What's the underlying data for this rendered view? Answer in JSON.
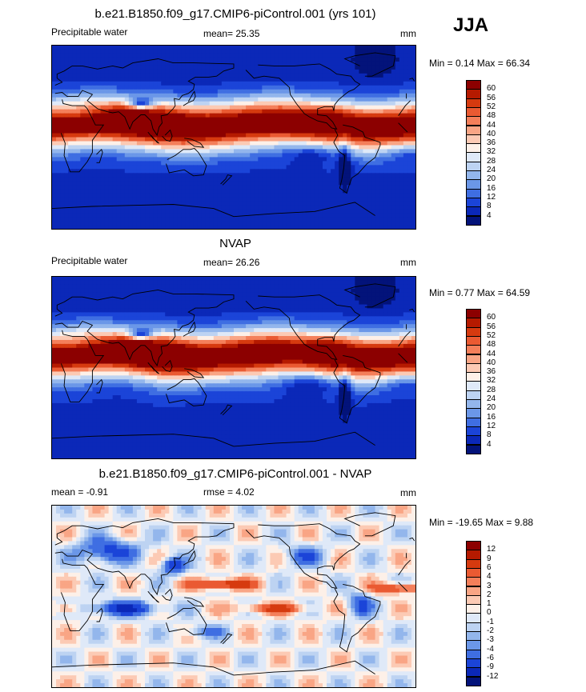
{
  "season": "JJA",
  "units_label": "mm",
  "panels": [
    {
      "title": "b.e21.B1850.f09_g17.CMIP6-piControl.001 (yrs 101)",
      "left_label": "Precipitable water",
      "center_label": "mean=  25.35",
      "right_label": "mm",
      "minmax_label": "Min =   0.14 Max =  66.34",
      "kind": "field"
    },
    {
      "title": "NVAP",
      "left_label": "Precipitable water",
      "center_label": "mean=  26.26",
      "right_label": "mm",
      "minmax_label": "Min =   0.77 Max =  64.59",
      "kind": "field"
    },
    {
      "title": "b.e21.B1850.f09_g17.CMIP6-piControl.001 - NVAP",
      "left_label": "mean =  -0.91",
      "center_label": "rmse =   4.02",
      "right_label": "mm",
      "minmax_label": "Min = -19.65 Max =   9.88",
      "kind": "diff"
    }
  ],
  "colorbars": {
    "field": {
      "labels": [
        "60",
        "56",
        "52",
        "48",
        "44",
        "40",
        "36",
        "32",
        "28",
        "24",
        "20",
        "16",
        "12",
        "8",
        "4"
      ],
      "colors": [
        "#8c0000",
        "#b51a00",
        "#d63a0f",
        "#ea5a32",
        "#f47f5a",
        "#f9a585",
        "#fccab4",
        "#fdf0e8",
        "#dfe9f8",
        "#bdd3f2",
        "#93b6ec",
        "#6b97e8",
        "#3f6ee2",
        "#1b44d8",
        "#0b28b8",
        "#03137a"
      ]
    },
    "diff": {
      "labels": [
        "12",
        "9",
        "6",
        "4",
        "3",
        "2",
        "1",
        "0",
        "-1",
        "-2",
        "-3",
        "-4",
        "-6",
        "-9",
        "-12"
      ],
      "colors": [
        "#8c0000",
        "#b51a00",
        "#d63a0f",
        "#ea5a32",
        "#f47f5a",
        "#f9a585",
        "#fccab4",
        "#fdf0e8",
        "#dfe9f8",
        "#bdd3f2",
        "#93b6ec",
        "#6b97e8",
        "#3f6ee2",
        "#1b44d8",
        "#0b28b8",
        "#03137a"
      ]
    }
  },
  "chart_data": [
    {
      "type": "heatmap",
      "title": "b.e21.B1850.f09_g17.CMIP6-piControl.001 (yrs 101)",
      "variable": "Precipitable water",
      "units": "mm",
      "mean": 25.35,
      "min": 0.14,
      "max": 66.34,
      "levels": [
        4,
        8,
        12,
        16,
        20,
        24,
        28,
        32,
        36,
        40,
        44,
        48,
        52,
        56,
        60
      ],
      "season": "JJA"
    },
    {
      "type": "heatmap",
      "title": "NVAP",
      "variable": "Precipitable water",
      "units": "mm",
      "mean": 26.26,
      "min": 0.77,
      "max": 64.59,
      "levels": [
        4,
        8,
        12,
        16,
        20,
        24,
        28,
        32,
        36,
        40,
        44,
        48,
        52,
        56,
        60
      ],
      "season": "JJA"
    },
    {
      "type": "heatmap",
      "title": "b.e21.B1850.f09_g17.CMIP6-piControl.001 - NVAP",
      "units": "mm",
      "mean": -0.91,
      "rmse": 4.02,
      "min": -19.65,
      "max": 9.88,
      "levels": [
        -12,
        -9,
        -6,
        -4,
        -3,
        -2,
        -1,
        0,
        1,
        2,
        3,
        4,
        6,
        9,
        12
      ],
      "season": "JJA"
    }
  ]
}
